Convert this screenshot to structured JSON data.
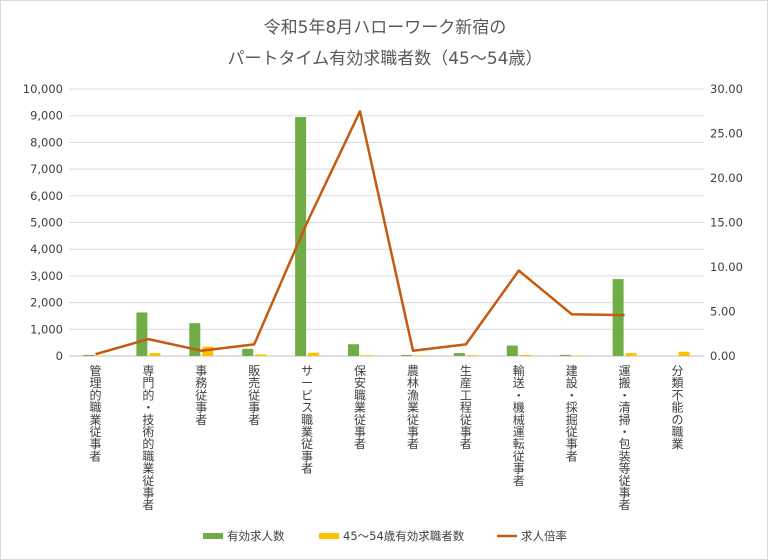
{
  "title_lines": [
    "令和5年8月ハローワーク新宿の",
    "パートタイム有効求職者数（45～54歳）"
  ],
  "chart_data": {
    "type": "bar",
    "categories": [
      "管理的職業従事者",
      "専門的・技術的職業従事者",
      "事務従事者",
      "販売従事者",
      "サービス職業従事者",
      "保安職業従事者",
      "農林漁業従事者",
      "生産工程従事者",
      "輸送・機械運転従事者",
      "建設・採掘従事者",
      "運搬・清掃・包装等従事者",
      "分類不能の職業"
    ],
    "series": [
      {
        "name": "有効求人数",
        "type": "bar",
        "axis": "left",
        "color": "#70ad47",
        "values": [
          40,
          1630,
          1230,
          270,
          8950,
          440,
          40,
          110,
          390,
          40,
          2880,
          0
        ]
      },
      {
        "name": "45～54歳有効求職者数",
        "type": "bar",
        "axis": "left",
        "color": "#ffc000",
        "values": [
          20,
          110,
          350,
          60,
          120,
          30,
          20,
          30,
          40,
          20,
          110,
          160
        ]
      },
      {
        "name": "求人倍率",
        "type": "line",
        "axis": "right",
        "color": "#c55a11",
        "values": [
          0.2,
          1.9,
          0.6,
          1.3,
          15.0,
          27.5,
          0.6,
          1.3,
          9.6,
          4.7,
          4.6,
          null
        ]
      }
    ],
    "y_left": {
      "min": 0,
      "max": 10000,
      "step": 1000,
      "tick_labels": [
        "0",
        "1,000",
        "2,000",
        "3,000",
        "4,000",
        "5,000",
        "6,000",
        "7,000",
        "8,000",
        "9,000",
        "10,000"
      ]
    },
    "y_right": {
      "min": 0,
      "max": 30,
      "step": 5,
      "tick_labels": [
        "0.00",
        "5.00",
        "10.00",
        "15.00",
        "20.00",
        "25.00",
        "30.00"
      ]
    },
    "grid": true,
    "legend_position": "bottom"
  }
}
